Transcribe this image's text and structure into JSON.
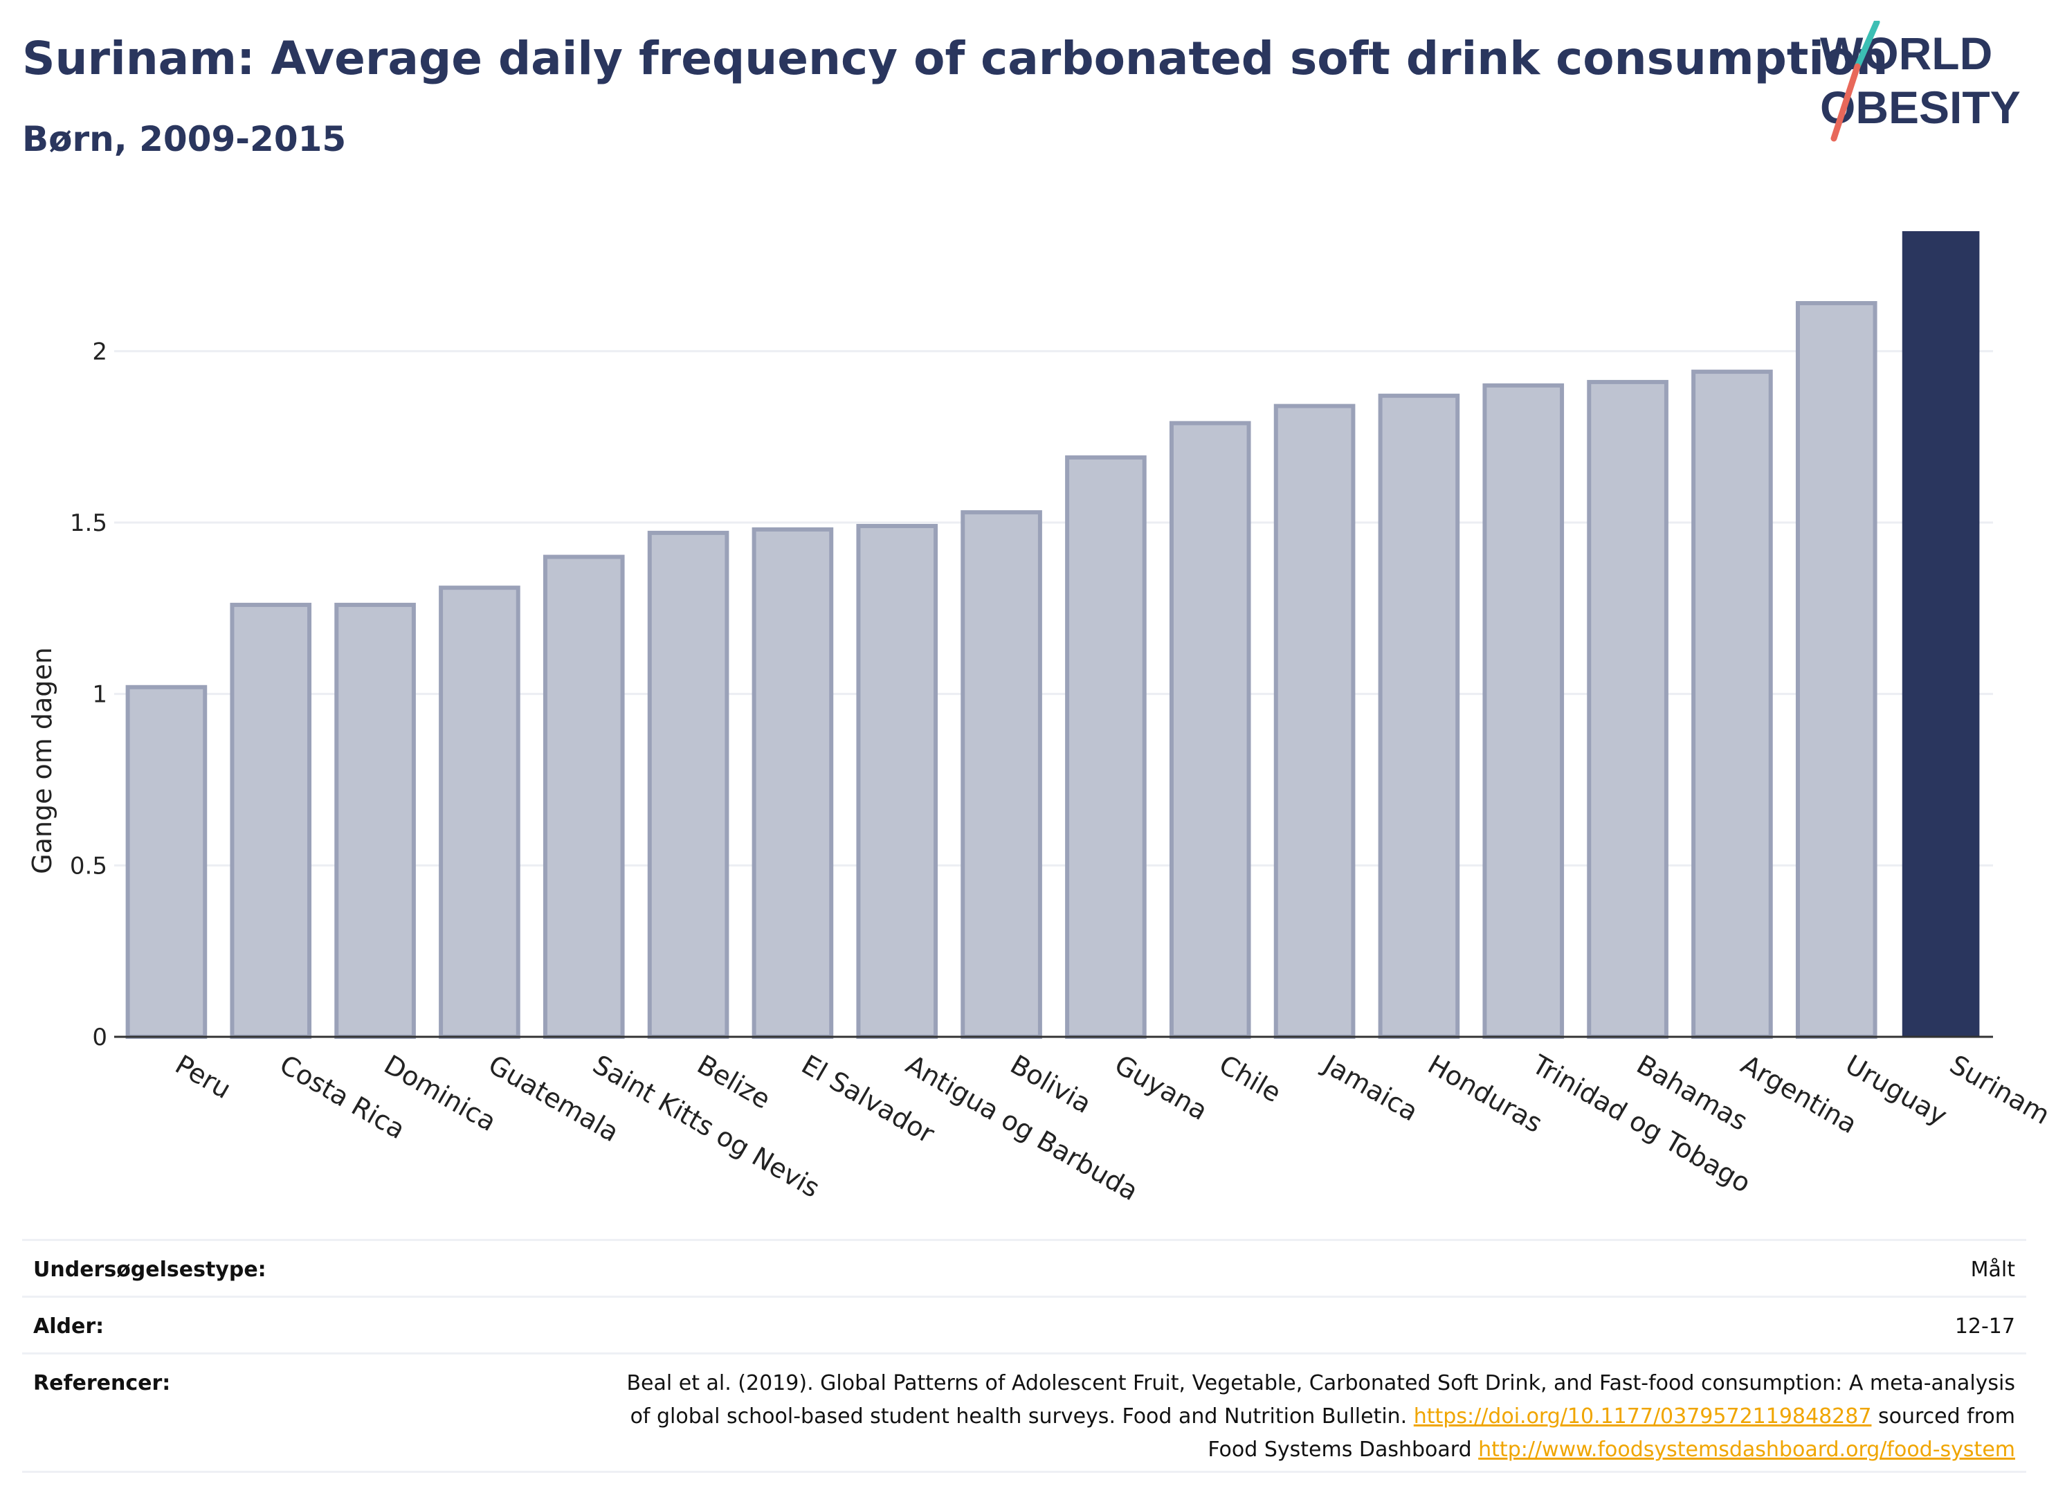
{
  "header": {
    "title": "Surinam: Average daily frequency of carbonated soft drink consumption",
    "subtitle": "Børn, 2009-2015",
    "logo_text_line1": "WORLD",
    "logo_text_line2": "OBESITY"
  },
  "colors": {
    "accent": "#2a365e",
    "bar_default": "#bec3d1",
    "bar_border": "#9aa1b8",
    "highlight": "#2a365e",
    "link": "#f0a500",
    "logo_teal": "#3cbfb4",
    "logo_coral": "#e8685a"
  },
  "chart_data": {
    "type": "bar",
    "title": "Surinam: Average daily frequency of carbonated soft drink consumption",
    "subtitle": "Børn, 2009-2015",
    "xlabel": "",
    "ylabel": "Gange om dagen",
    "ylim": [
      0,
      2.35
    ],
    "yticks": [
      0,
      0.5,
      1,
      1.5,
      2
    ],
    "ytick_labels": [
      "0",
      "0.5",
      "1",
      "1.5",
      "2"
    ],
    "grid": true,
    "highlight": "Surinam",
    "categories": [
      "Peru",
      "Costa Rica",
      "Dominica",
      "Guatemala",
      "Saint Kitts og Nevis",
      "Belize",
      "El Salvador",
      "Antigua og Barbuda",
      "Bolivia",
      "Guyana",
      "Chile",
      "Jamaica",
      "Honduras",
      "Trinidad og Tobago",
      "Bahamas",
      "Argentina",
      "Uruguay",
      "Surinam"
    ],
    "values": [
      1.02,
      1.26,
      1.26,
      1.31,
      1.4,
      1.47,
      1.48,
      1.49,
      1.53,
      1.69,
      1.79,
      1.84,
      1.87,
      1.9,
      1.91,
      1.94,
      2.14,
      2.35
    ]
  },
  "meta": {
    "rows": [
      {
        "label": "Undersøgelsestype:",
        "value_lines": [
          "Målt"
        ]
      },
      {
        "label": "Alder:",
        "value_lines": [
          "12-17"
        ]
      }
    ],
    "references": {
      "label": "Referencer:",
      "line1": "Beal et al. (2019). Global Patterns of Adolescent Fruit, Vegetable, Carbonated Soft Drink, and Fast-food consumption: A meta-analysis",
      "line2_text": "of global school-based student health surveys. Food and Nutrition Bulletin. ",
      "line2_link": "https://doi.org/10.1177/0379572119848287",
      "line2_tail": " sourced from",
      "line3_text": "Food Systems Dashboard ",
      "line3_link": "http://www.foodsystemsdashboard.org/food-system"
    }
  }
}
